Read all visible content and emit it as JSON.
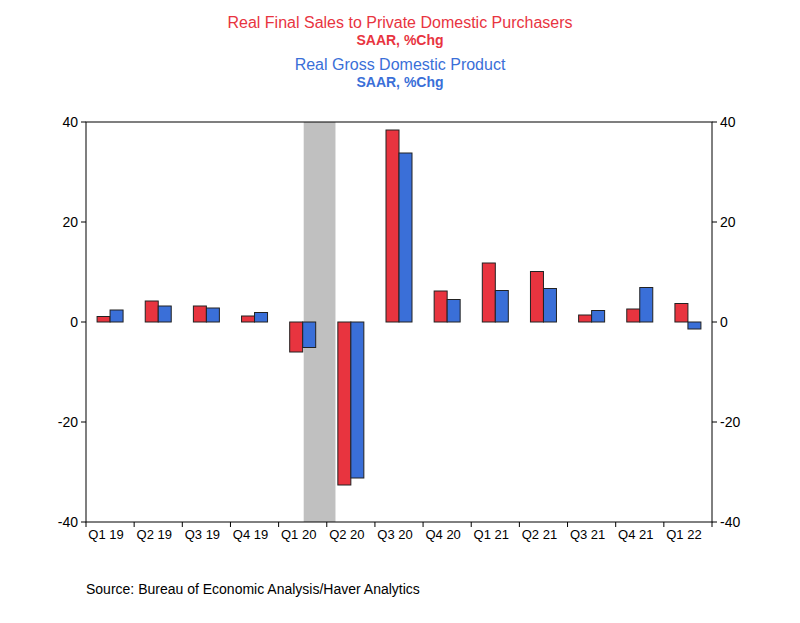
{
  "chart_data": {
    "type": "bar",
    "categories": [
      "Q1 19",
      "Q2 19",
      "Q3 19",
      "Q4 19",
      "Q1 20",
      "Q2 20",
      "Q3 20",
      "Q4 20",
      "Q1 21",
      "Q2 21",
      "Q3 21",
      "Q4 21",
      "Q1 22"
    ],
    "series": [
      {
        "name": "Real Final Sales to Private Domestic Purchasers",
        "subtitle": "SAAR, %Chg",
        "color": "#e8343f",
        "values": [
          1.1,
          4.2,
          3.2,
          1.2,
          -6.0,
          -32.6,
          38.4,
          6.2,
          11.8,
          10.1,
          1.4,
          2.6,
          3.7
        ]
      },
      {
        "name": "Real Gross Domestic Product",
        "subtitle": "SAAR, %Chg",
        "color": "#3a6fd8",
        "values": [
          2.4,
          3.2,
          2.8,
          1.9,
          -5.1,
          -31.2,
          33.8,
          4.5,
          6.3,
          6.7,
          2.3,
          6.9,
          -1.4
        ]
      }
    ],
    "shaded_categories": [
      "Q1 20"
    ],
    "ylim": [
      -40,
      40
    ],
    "yticks": [
      -40,
      -20,
      0,
      20,
      40
    ],
    "y2lim": [
      -40,
      40
    ],
    "y2ticks": [
      -40,
      -20,
      0,
      20,
      40
    ],
    "grid": false,
    "source": "Source:  Bureau of Economic Analysis/Haver Analytics"
  }
}
